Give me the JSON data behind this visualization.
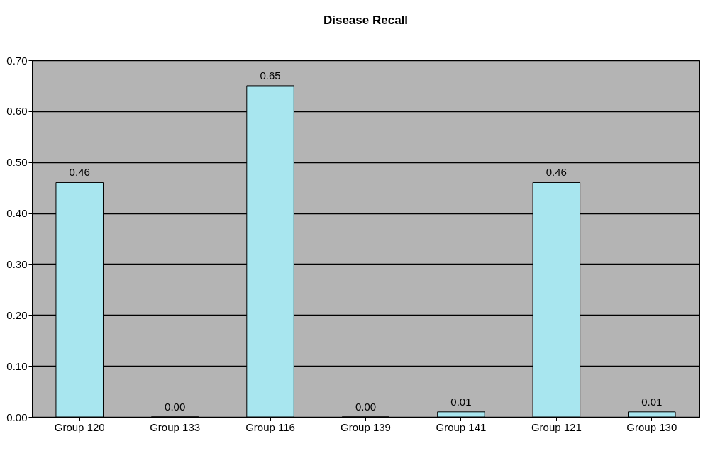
{
  "chart_data": {
    "type": "bar",
    "title": "Disease Recall",
    "categories": [
      "Group 120",
      "Group 133",
      "Group 116",
      "Group 139",
      "Group 141",
      "Group 121",
      "Group 130"
    ],
    "values": [
      0.46,
      0,
      0.65,
      0,
      0.01,
      0.46,
      0.01
    ],
    "value_labels": [
      "0.46",
      "0.00",
      "0.65",
      "0.00",
      "0.01",
      "0.46",
      "0.01"
    ],
    "color": "#a8e6ef",
    "ylim": [
      0,
      0.7
    ],
    "yticks": [
      {
        "value": 0,
        "label": "0.00"
      },
      {
        "value": 0.1,
        "label": "0.10"
      },
      {
        "value": 0.2,
        "label": "0.20"
      },
      {
        "value": 0.3,
        "label": "0.30"
      },
      {
        "value": 0.4,
        "label": "0.40"
      },
      {
        "value": 0.5,
        "label": "0.50"
      },
      {
        "value": 0.6,
        "label": "0.60"
      },
      {
        "value": 0.7,
        "label": "0.70"
      }
    ],
    "grid": "y"
  }
}
